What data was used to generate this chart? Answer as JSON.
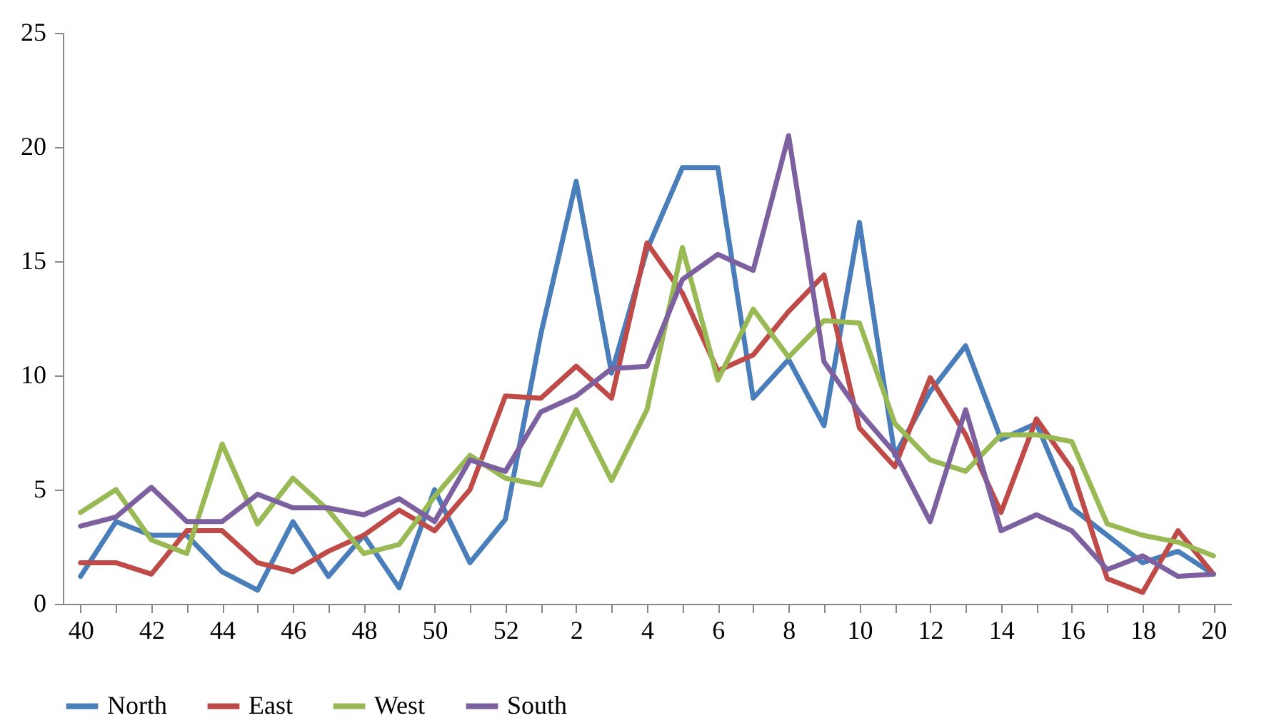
{
  "chart_data": {
    "type": "line",
    "categories": [
      "40",
      null,
      "42",
      null,
      "44",
      null,
      "46",
      null,
      "48",
      null,
      "50",
      null,
      "52",
      null,
      "2",
      null,
      "4",
      null,
      "6",
      null,
      "8",
      null,
      "10",
      null,
      "12",
      null,
      "14",
      null,
      "16",
      null,
      "18",
      null,
      "20"
    ],
    "series": [
      {
        "name": "North",
        "color": "#4a7ebb",
        "values": [
          1.2,
          3.6,
          3.0,
          3.0,
          1.4,
          0.6,
          3.6,
          1.2,
          3.0,
          0.7,
          5.0,
          1.8,
          3.7,
          11.8,
          18.5,
          10.1,
          15.5,
          19.1,
          19.1,
          9.0,
          10.7,
          7.8,
          16.7,
          6.5,
          9.3,
          11.3,
          7.2,
          7.9,
          4.2,
          3.0,
          1.8,
          2.3,
          1.3
        ]
      },
      {
        "name": "East",
        "color": "#be4b48",
        "values": [
          1.8,
          1.8,
          1.3,
          3.2,
          3.2,
          1.8,
          1.4,
          2.3,
          3.0,
          4.1,
          3.2,
          5.0,
          9.1,
          9.0,
          10.4,
          9.0,
          15.8,
          13.6,
          10.2,
          10.9,
          12.8,
          14.4,
          7.7,
          6.0,
          9.9,
          7.4,
          4.0,
          8.1,
          5.9,
          1.1,
          0.5,
          3.2,
          1.3
        ]
      },
      {
        "name": "West",
        "color": "#98b954",
        "values": [
          4.0,
          5.0,
          2.8,
          2.2,
          7.0,
          3.5,
          5.5,
          4.1,
          2.2,
          2.6,
          4.7,
          6.5,
          5.5,
          5.2,
          8.5,
          5.4,
          8.5,
          15.6,
          9.8,
          12.9,
          10.8,
          12.4,
          12.3,
          7.9,
          6.3,
          5.8,
          7.4,
          7.4,
          7.1,
          3.5,
          3.0,
          2.7,
          2.1
        ]
      },
      {
        "name": "South",
        "color": "#7d60a0",
        "values": [
          3.4,
          3.8,
          5.1,
          3.6,
          3.6,
          4.8,
          4.2,
          4.2,
          3.9,
          4.6,
          3.6,
          6.3,
          5.8,
          8.4,
          9.1,
          10.3,
          10.4,
          14.2,
          15.3,
          14.6,
          20.5,
          10.6,
          8.4,
          6.6,
          3.6,
          8.5,
          3.2,
          3.9,
          3.2,
          1.5,
          2.1,
          1.2,
          1.3
        ]
      }
    ],
    "ylim": [
      0,
      25
    ],
    "yticks": [
      0,
      5,
      10,
      15,
      20,
      25
    ],
    "grid": false,
    "legend": "bottom",
    "marker": "none",
    "line_style": "solid"
  }
}
